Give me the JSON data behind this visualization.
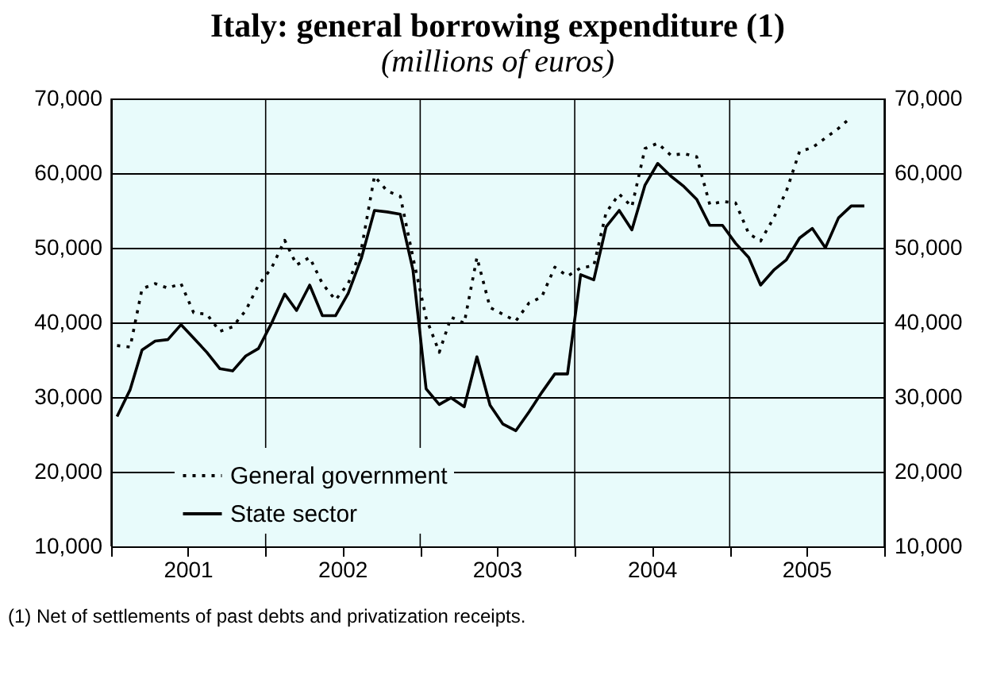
{
  "chart_data": {
    "type": "line",
    "title": "Italy: general borrowing expenditure (1)",
    "subtitle": "(millions of euros)",
    "x": [
      "2001-01-15",
      "2001-02-15",
      "2001-03-15",
      "2001-04-15",
      "2001-05-15",
      "2001-06-15",
      "2001-07-15",
      "2001-08-15",
      "2001-09-15",
      "2001-10-15",
      "2001-11-15",
      "2001-12-15",
      "2002-01-15",
      "2002-02-15",
      "2002-03-15",
      "2002-04-15",
      "2002-05-15",
      "2002-06-15",
      "2002-07-15",
      "2002-08-15",
      "2002-09-15",
      "2002-10-15",
      "2002-11-15",
      "2002-12-15",
      "2003-01-15",
      "2003-02-15",
      "2003-03-15",
      "2003-04-15",
      "2003-05-15",
      "2003-06-15",
      "2003-07-15",
      "2003-08-15",
      "2003-09-15",
      "2003-10-15",
      "2003-11-15",
      "2003-12-15",
      "2004-01-15",
      "2004-02-15",
      "2004-03-15",
      "2004-04-15",
      "2004-05-15",
      "2004-06-15",
      "2004-07-15",
      "2004-08-15",
      "2004-09-15",
      "2004-10-15",
      "2004-11-15",
      "2004-12-15",
      "2005-01-15",
      "2005-02-15",
      "2005-03-15",
      "2005-04-15",
      "2005-05-15",
      "2005-06-15",
      "2005-07-15",
      "2005-08-15",
      "2005-09-15",
      "2005-10-15",
      "2005-11-15"
    ],
    "series": [
      {
        "name": "General government",
        "color": "#000000",
        "line_style": "dotted",
        "values": [
          36900,
          36700,
          44500,
          45200,
          44600,
          45200,
          41300,
          41100,
          38800,
          39400,
          41600,
          45000,
          47300,
          51000,
          47700,
          48700,
          45200,
          43000,
          45200,
          49800,
          59600,
          57600,
          56900,
          48700,
          40600,
          36000,
          40700,
          39900,
          48700,
          42000,
          41100,
          40200,
          42600,
          43400,
          47400,
          46200,
          47300,
          47600,
          54700,
          57200,
          55500,
          63300,
          64000,
          62400,
          62600,
          62200,
          55800,
          56200,
          56000,
          51900,
          50900,
          54000,
          57600,
          62900,
          63400,
          64700,
          66000,
          67500,
          null
        ]
      },
      {
        "name": "State sector",
        "color": "#000000",
        "line_style": "solid",
        "values": [
          27400,
          31000,
          36300,
          37500,
          37700,
          39700,
          37900,
          36000,
          33800,
          33500,
          35500,
          36500,
          39900,
          43800,
          41600,
          45000,
          40900,
          40900,
          43900,
          48600,
          55000,
          54800,
          54500,
          47000,
          31100,
          29000,
          29900,
          28700,
          35400,
          28900,
          26400,
          25500,
          28000,
          30600,
          33100,
          33100,
          46400,
          45700,
          52800,
          55000,
          52400,
          58400,
          61300,
          59600,
          58200,
          56500,
          53000,
          53000,
          50600,
          48700,
          45000,
          47000,
          48400,
          51300,
          52600,
          50000,
          54000,
          55600,
          55600
        ]
      }
    ],
    "xlim": [
      "2001-01-01",
      "2006-01-01"
    ],
    "xticks": [
      {
        "value": "2001-01-01",
        "label": null
      },
      {
        "value": "2001-07-01",
        "label": "2001"
      },
      {
        "value": "2002-01-01",
        "label": null
      },
      {
        "value": "2002-07-01",
        "label": "2002"
      },
      {
        "value": "2003-01-01",
        "label": null
      },
      {
        "value": "2003-07-01",
        "label": "2003"
      },
      {
        "value": "2004-01-01",
        "label": null
      },
      {
        "value": "2004-07-01",
        "label": "2004"
      },
      {
        "value": "2005-01-01",
        "label": null
      },
      {
        "value": "2005-07-01",
        "label": "2005"
      },
      {
        "value": "2006-01-01",
        "label": null
      }
    ],
    "ylim": [
      10000,
      70000
    ],
    "yticks": [
      {
        "value": 10000,
        "label": "10,000"
      },
      {
        "value": 20000,
        "label": "20,000"
      },
      {
        "value": 30000,
        "label": "30,000"
      },
      {
        "value": 40000,
        "label": "40,000"
      },
      {
        "value": 50000,
        "label": "50,000"
      },
      {
        "value": 60000,
        "label": "60,000"
      },
      {
        "value": 70000,
        "label": "70,000"
      }
    ],
    "y2lim": [
      10000,
      70000
    ],
    "y2ticks": [
      {
        "value": 10000,
        "label": "10,000"
      },
      {
        "value": 20000,
        "label": "20,000"
      },
      {
        "value": 30000,
        "label": "30,000"
      },
      {
        "value": 40000,
        "label": "40,000"
      },
      {
        "value": 50000,
        "label": "50,000"
      },
      {
        "value": 60000,
        "label": "60,000"
      },
      {
        "value": 70000,
        "label": "70,000"
      }
    ],
    "grid": true,
    "legend": "bottom left",
    "annotations": [
      "(1) Net of settlements of past debts and privatization receipts."
    ]
  }
}
